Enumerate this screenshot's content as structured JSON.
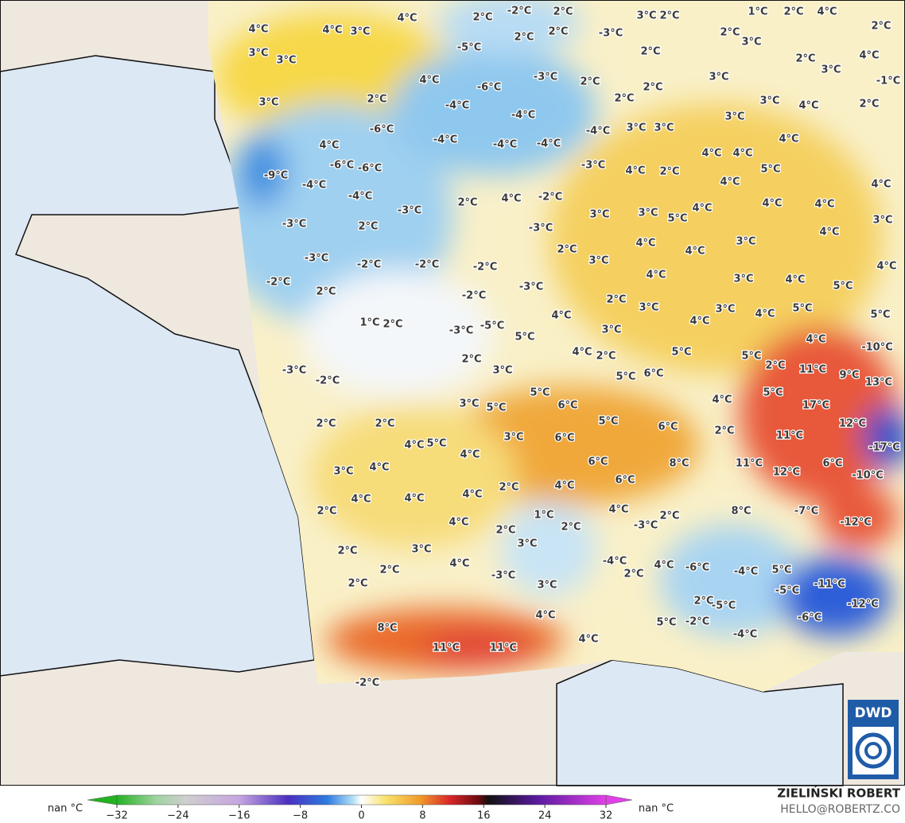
{
  "map_labels": [
    "4°C",
    "4°C",
    "3°C",
    "4°C",
    "3°C",
    "3°C",
    "3°C",
    "2°C",
    "4°C",
    "4°C",
    "-6°C",
    "-9°C",
    "-6°C",
    "-6°C",
    "-4°C",
    "-4°C",
    "-3°C",
    "-3°C",
    "-3°C",
    "-2°C",
    "-2°C",
    "2°C",
    "2°C",
    "-2°C",
    "2°C",
    "4°C",
    "-2°C",
    "-3°C",
    "-2°C",
    "-3°C",
    "-2°C",
    "-3°C",
    "-5°C",
    "1°C",
    "2°C",
    "-3°C",
    "-2°C",
    "2°C",
    "2°C",
    "5°C",
    "2°C",
    "3°C",
    "3°C",
    "5°C",
    "5°C",
    "6°C",
    "4°C",
    "5°C",
    "4°C",
    "3°C",
    "6°C",
    "6°C",
    "6°C",
    "8°C",
    "6°C",
    "5°C",
    "4°C",
    "3°C",
    "4°C",
    "2°C",
    "4°C",
    "4°C",
    "4°C",
    "2°C",
    "4°C",
    "1°C",
    "2°C",
    "3°C",
    "2°C",
    "2°C",
    "3°C",
    "2°C",
    "2°C",
    "4°C",
    "-3°C",
    "3°C",
    "8°C",
    "11°C",
    "11°C",
    "4°C",
    "4°C",
    "-2°C",
    "-4°C",
    "2°C",
    "4°C",
    "-3°C",
    "2°C",
    "4°C",
    "5°C",
    "-2°C",
    "-4°C",
    "-6°C",
    "-4°C",
    "2°C",
    "-5°C",
    "5°C",
    "-5°C",
    "-6°C",
    "-11°C",
    "-12°C",
    "-12°C",
    "-7°C",
    "8°C",
    "11°C",
    "12°C",
    "11°C",
    "-10°C",
    "6°C",
    "-17°C",
    "12°C",
    "17°C",
    "11°C",
    "9°C",
    "13°C",
    "-10°C",
    "5°C",
    "4°C",
    "2°C",
    "5°C",
    "2°C",
    "4°C",
    "5°C",
    "5°C",
    "4°C",
    "3°C",
    "4°C",
    "5°C",
    "4°C",
    "5°C",
    "4°C",
    "3°C",
    "4°C",
    "4°C",
    "4°C",
    "3°C",
    "3°C",
    "4°C",
    "4°C",
    "5°C",
    "4°C",
    "4°C",
    "4°C",
    "5°C",
    "3°C",
    "4°C",
    "2°C",
    "4°C",
    "3°C",
    "3°C",
    "2°C",
    "4°C",
    "3°C",
    "2°C",
    "4°C",
    "4°C",
    "3°C",
    "4°C",
    "2°C",
    "5°C",
    "6°C",
    "-3°C",
    "3°C",
    "3°C",
    "-4°C",
    "-4°C",
    "-4°C",
    "-4°C",
    "-4°C",
    "-4°C",
    "-6°C",
    "-3°C",
    "2°C",
    "2°C",
    "2°C",
    "2°C",
    "3°C",
    "2°C",
    "2°C",
    "-3°C",
    "2°C",
    "-2°C",
    "2°C",
    "2°C",
    "-5°C",
    "1°C",
    "2°C",
    "4°C",
    "2°C",
    "2°C",
    "3°C",
    "2°C",
    "4°C",
    "3°C",
    "-1°C",
    "3°C",
    "4°C",
    "2°C",
    "3°C",
    "4°C",
    "3°C"
  ],
  "colorbar": {
    "left_label": "nan °C",
    "right_label": "nan °C",
    "ticks": [
      {
        "value": -32,
        "label": "−32"
      },
      {
        "value": -24,
        "label": "−24"
      },
      {
        "value": -16,
        "label": "−16"
      },
      {
        "value": -8,
        "label": "−8"
      },
      0,
      8,
      16,
      24,
      32
    ]
  },
  "credits": {
    "author": "ZIELIŃSKI ROBERT",
    "contact": "HELLO@ROBERTZ.CO"
  },
  "logo": "DWD"
}
